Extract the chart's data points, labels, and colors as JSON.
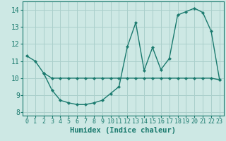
{
  "line1_x": [
    0,
    1,
    2,
    3,
    4,
    5,
    6,
    7,
    8,
    9,
    10,
    11,
    12,
    13,
    14,
    15,
    16,
    17,
    18,
    19,
    20,
    21,
    22,
    23
  ],
  "line1_y": [
    11.3,
    11.0,
    10.3,
    9.3,
    8.7,
    8.55,
    8.45,
    8.45,
    8.55,
    8.7,
    9.1,
    9.5,
    11.85,
    13.25,
    10.45,
    11.8,
    10.5,
    11.15,
    13.7,
    13.9,
    14.1,
    13.85,
    12.75,
    9.9
  ],
  "line2_x": [
    2,
    3,
    4,
    5,
    6,
    7,
    8,
    9,
    10,
    11,
    12,
    13,
    14,
    15,
    16,
    17,
    18,
    19,
    20,
    21,
    22,
    23
  ],
  "line2_y": [
    10.3,
    10.0,
    10.0,
    10.0,
    10.0,
    10.0,
    10.0,
    10.0,
    10.0,
    10.0,
    10.0,
    10.0,
    10.0,
    10.0,
    10.0,
    10.0,
    10.0,
    10.0,
    10.0,
    10.0,
    10.0,
    9.9
  ],
  "line_color": "#1a7a6e",
  "bg_color": "#cde8e4",
  "grid_color": "#aacfcb",
  "xlim": [
    -0.5,
    23.5
  ],
  "ylim": [
    7.8,
    14.5
  ],
  "yticks": [
    8,
    9,
    10,
    11,
    12,
    13,
    14
  ],
  "xticks": [
    0,
    1,
    2,
    3,
    4,
    5,
    6,
    7,
    8,
    9,
    10,
    11,
    12,
    13,
    14,
    15,
    16,
    17,
    18,
    19,
    20,
    21,
    22,
    23
  ],
  "xlabel": "Humidex (Indice chaleur)",
  "xlabel_fontsize": 7.5,
  "tick_fontsize": 6,
  "ytick_fontsize": 7
}
